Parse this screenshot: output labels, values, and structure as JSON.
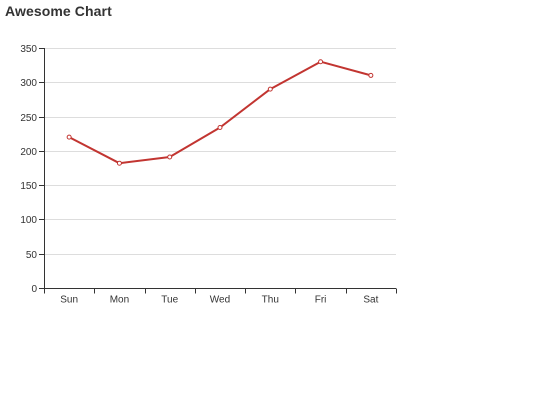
{
  "chart_data": {
    "type": "line",
    "title": "Awesome Chart",
    "categories": [
      "Sun",
      "Mon",
      "Tue",
      "Wed",
      "Thu",
      "Fri",
      "Sat"
    ],
    "series": [
      {
        "values": [
          220,
          182,
          191,
          234,
          290,
          330,
          310
        ]
      }
    ],
    "y_ticks": [
      0,
      50,
      100,
      150,
      200,
      250,
      300,
      350
    ],
    "ylim": [
      0,
      350
    ],
    "grid": "horizontal",
    "legend": "none",
    "colors": {
      "line": "#c23531",
      "grid": "#dddddd",
      "axis": "#333333",
      "text": "#333333"
    }
  }
}
